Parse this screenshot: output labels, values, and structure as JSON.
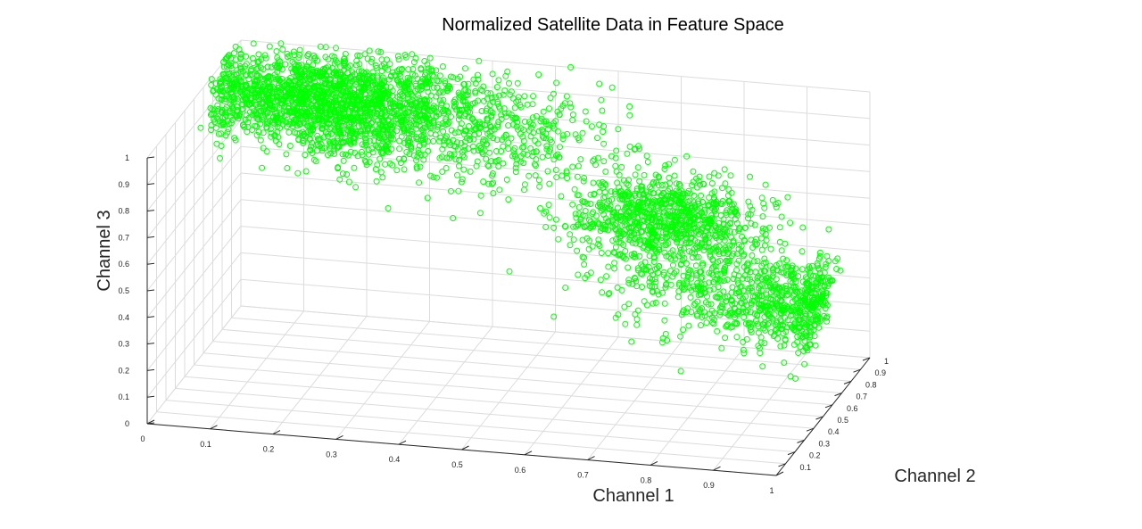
{
  "chart_data": {
    "type": "scatter3d",
    "title": "Normalized Satellite Data in Feature Space",
    "xlabel": "Channel 1",
    "ylabel": "Channel 2",
    "zlabel": "Channel 3",
    "xlim": [
      0,
      1
    ],
    "ylim": [
      0,
      1
    ],
    "zlim": [
      0,
      1
    ],
    "xticks": [
      "0",
      "0.1",
      "0.2",
      "0.3",
      "0.4",
      "0.5",
      "0.6",
      "0.7",
      "0.8",
      "0.9",
      "1"
    ],
    "yticks": [
      "0.1",
      "0.2",
      "0.3",
      "0.4",
      "0.5",
      "0.6",
      "0.7",
      "0.8",
      "0.9",
      "1"
    ],
    "zticks": [
      "0",
      "0.1",
      "0.2",
      "0.3",
      "0.4",
      "0.5",
      "0.6",
      "0.7",
      "0.8",
      "0.9",
      "1"
    ],
    "grid": true,
    "marker": "open-circle",
    "marker_color": "#00ff00",
    "clusters": [
      {
        "center": [
          0.15,
          0.85,
          0.87
        ],
        "spread": [
          0.1,
          0.1,
          0.08
        ],
        "count": 1600
      },
      {
        "center": [
          0.35,
          0.9,
          0.8
        ],
        "spread": [
          0.12,
          0.08,
          0.1
        ],
        "count": 700
      },
      {
        "center": [
          0.7,
          0.78,
          0.58
        ],
        "spread": [
          0.07,
          0.08,
          0.07
        ],
        "count": 800
      },
      {
        "center": [
          0.95,
          0.4,
          0.46
        ],
        "spread": [
          0.08,
          0.1,
          0.07
        ],
        "count": 600
      },
      {
        "center": [
          0.8,
          0.4,
          0.55
        ],
        "spread": [
          0.1,
          0.15,
          0.09
        ],
        "count": 300
      }
    ]
  }
}
